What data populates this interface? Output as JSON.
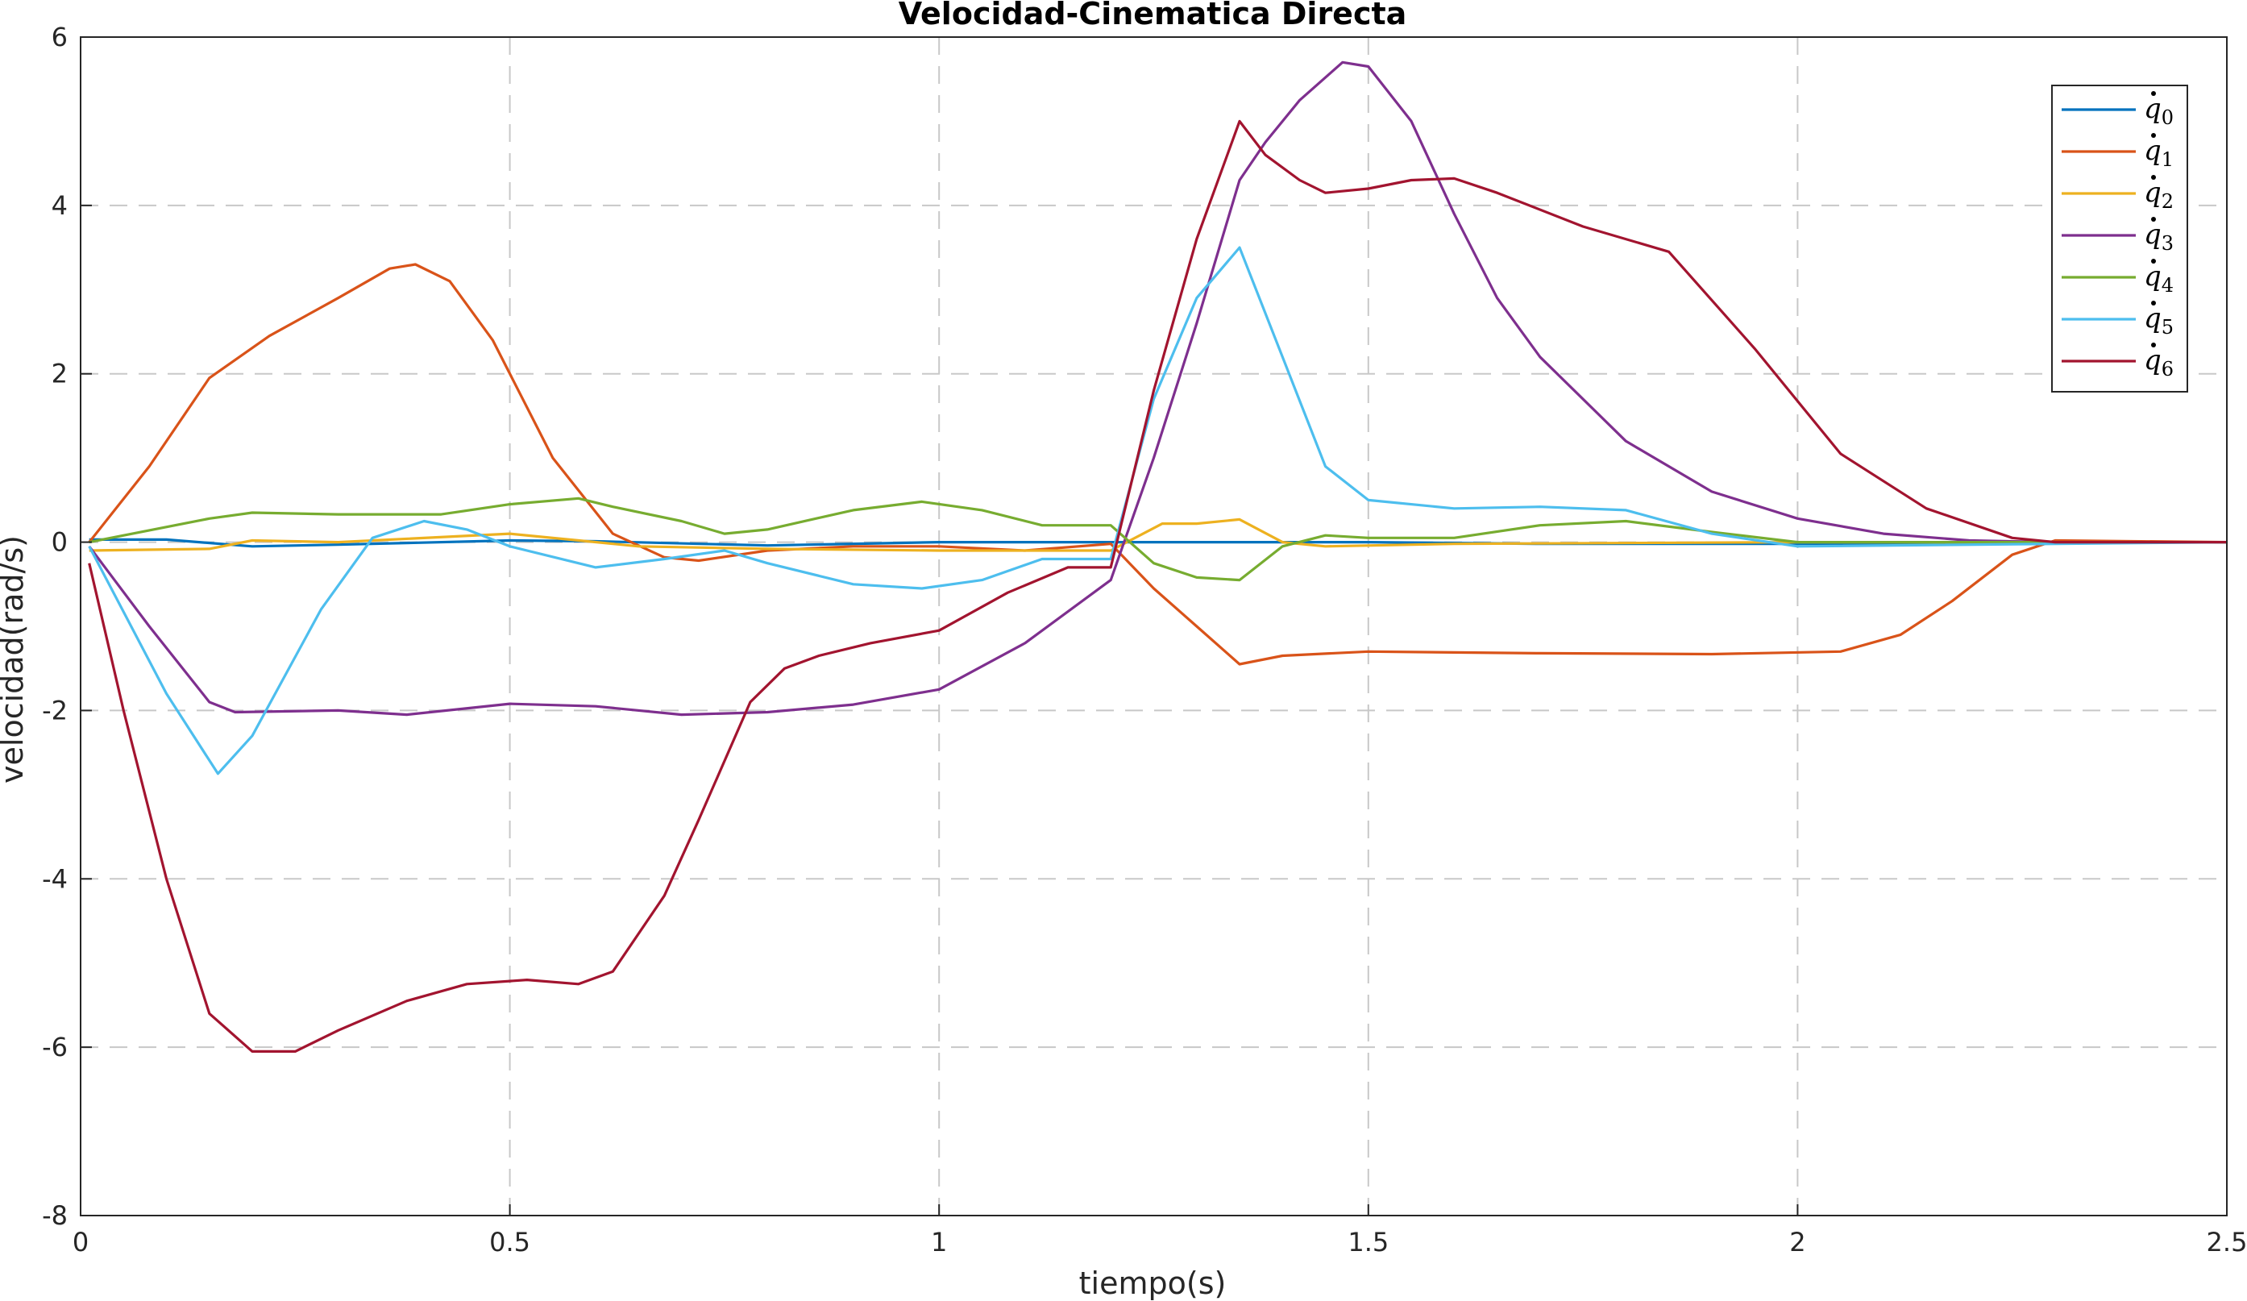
{
  "chart_data": {
    "type": "line",
    "title": "Velocidad-Cinematica Directa",
    "xlabel": "tiempo(s)",
    "ylabel": "velocidad(rad/s)",
    "xlim": [
      0,
      2.5
    ],
    "ylim": [
      -8,
      6
    ],
    "xticks": [
      0,
      0.5,
      1,
      1.5,
      2,
      2.5
    ],
    "xtick_labels": [
      "0",
      "0.5",
      "1",
      "1.5",
      "2",
      "2.5"
    ],
    "yticks": [
      -8,
      -6,
      -4,
      -2,
      0,
      2,
      4,
      6
    ],
    "ytick_labels": [
      "-8",
      "-6",
      "-4",
      "-2",
      "0",
      "2",
      "4",
      "6"
    ],
    "grid": true,
    "legend_position": "top-right",
    "series": [
      {
        "name": "q0",
        "color": "#0072BD",
        "x": [
          0.01,
          0.1,
          0.2,
          0.3,
          0.5,
          0.6,
          0.8,
          1.0,
          1.2,
          1.5,
          1.7,
          2.0,
          2.5
        ],
        "y": [
          0.03,
          0.03,
          -0.05,
          -0.03,
          0.02,
          0.01,
          -0.04,
          0.0,
          0.0,
          0.0,
          -0.02,
          -0.02,
          0.0
        ]
      },
      {
        "name": "q1",
        "color": "#D95319",
        "x": [
          0.01,
          0.08,
          0.15,
          0.22,
          0.3,
          0.36,
          0.39,
          0.43,
          0.48,
          0.55,
          0.62,
          0.68,
          0.72,
          0.8,
          0.9,
          1.0,
          1.1,
          1.2,
          1.25,
          1.3,
          1.35,
          1.4,
          1.5,
          1.7,
          1.9,
          2.05,
          2.12,
          2.18,
          2.25,
          2.3,
          2.5
        ],
        "y": [
          0.0,
          0.9,
          1.95,
          2.45,
          2.9,
          3.25,
          3.3,
          3.1,
          2.4,
          1.0,
          0.1,
          -0.18,
          -0.22,
          -0.1,
          -0.05,
          -0.05,
          -0.1,
          -0.02,
          -0.55,
          -1.0,
          -1.45,
          -1.35,
          -1.3,
          -1.32,
          -1.33,
          -1.3,
          -1.1,
          -0.7,
          -0.15,
          0.02,
          0.0
        ]
      },
      {
        "name": "q2",
        "color": "#EDB120",
        "x": [
          0.01,
          0.15,
          0.2,
          0.3,
          0.5,
          0.65,
          0.8,
          1.0,
          1.2,
          1.26,
          1.3,
          1.35,
          1.4,
          1.45,
          1.6,
          2.0,
          2.5
        ],
        "y": [
          -0.1,
          -0.08,
          0.02,
          0.0,
          0.1,
          -0.05,
          -0.08,
          -0.1,
          -0.1,
          0.22,
          0.22,
          0.27,
          0.0,
          -0.05,
          -0.02,
          0.0,
          0.0
        ]
      },
      {
        "name": "q3",
        "color": "#7E2F8E",
        "x": [
          0.01,
          0.08,
          0.15,
          0.18,
          0.3,
          0.38,
          0.5,
          0.6,
          0.7,
          0.8,
          0.9,
          1.0,
          1.1,
          1.2,
          1.25,
          1.3,
          1.35,
          1.38,
          1.42,
          1.47,
          1.5,
          1.55,
          1.6,
          1.65,
          1.7,
          1.8,
          1.9,
          2.0,
          2.1,
          2.2,
          2.3,
          2.5
        ],
        "y": [
          -0.05,
          -1.0,
          -1.9,
          -2.02,
          -2.0,
          -2.05,
          -1.92,
          -1.95,
          -2.05,
          -2.02,
          -1.93,
          -1.75,
          -1.2,
          -0.45,
          1.0,
          2.6,
          4.3,
          4.75,
          5.25,
          5.7,
          5.65,
          5.0,
          3.9,
          2.9,
          2.2,
          1.2,
          0.6,
          0.28,
          0.1,
          0.02,
          0.0,
          0.0
        ]
      },
      {
        "name": "q4",
        "color": "#77AC30",
        "x": [
          0.01,
          0.15,
          0.2,
          0.3,
          0.42,
          0.5,
          0.58,
          0.62,
          0.7,
          0.75,
          0.8,
          0.9,
          0.98,
          1.05,
          1.12,
          1.2,
          1.25,
          1.3,
          1.35,
          1.4,
          1.45,
          1.5,
          1.6,
          1.7,
          1.8,
          1.9,
          2.0,
          2.5
        ],
        "y": [
          0.0,
          0.28,
          0.35,
          0.33,
          0.33,
          0.45,
          0.52,
          0.42,
          0.25,
          0.1,
          0.15,
          0.38,
          0.48,
          0.38,
          0.2,
          0.2,
          -0.25,
          -0.42,
          -0.45,
          -0.05,
          0.08,
          0.05,
          0.05,
          0.2,
          0.25,
          0.12,
          0.0,
          0.0
        ]
      },
      {
        "name": "q5",
        "color": "#4DBEEE",
        "x": [
          0.01,
          0.1,
          0.16,
          0.2,
          0.28,
          0.34,
          0.4,
          0.45,
          0.5,
          0.6,
          0.68,
          0.75,
          0.8,
          0.9,
          0.98,
          1.05,
          1.12,
          1.2,
          1.25,
          1.3,
          1.35,
          1.4,
          1.45,
          1.5,
          1.6,
          1.7,
          1.8,
          1.9,
          2.0,
          2.5
        ],
        "y": [
          -0.05,
          -1.8,
          -2.75,
          -2.3,
          -0.8,
          0.05,
          0.25,
          0.15,
          -0.05,
          -0.3,
          -0.2,
          -0.1,
          -0.25,
          -0.5,
          -0.55,
          -0.45,
          -0.2,
          -0.2,
          1.7,
          2.9,
          3.5,
          2.2,
          0.9,
          0.5,
          0.4,
          0.42,
          0.38,
          0.1,
          -0.05,
          0.0
        ]
      },
      {
        "name": "q6",
        "color": "#A2142F",
        "x": [
          0.01,
          0.05,
          0.1,
          0.15,
          0.2,
          0.25,
          0.3,
          0.38,
          0.45,
          0.52,
          0.58,
          0.62,
          0.68,
          0.72,
          0.78,
          0.82,
          0.86,
          0.92,
          1.0,
          1.08,
          1.15,
          1.2,
          1.25,
          1.3,
          1.35,
          1.38,
          1.42,
          1.45,
          1.5,
          1.55,
          1.6,
          1.65,
          1.75,
          1.85,
          1.95,
          2.05,
          2.15,
          2.25,
          2.3,
          2.5
        ],
        "y": [
          -0.25,
          -2.0,
          -4.0,
          -5.6,
          -6.05,
          -6.05,
          -5.8,
          -5.45,
          -5.25,
          -5.2,
          -5.25,
          -5.1,
          -4.2,
          -3.3,
          -1.9,
          -1.5,
          -1.35,
          -1.2,
          -1.05,
          -0.6,
          -0.3,
          -0.3,
          1.8,
          3.6,
          5.0,
          4.6,
          4.3,
          4.15,
          4.2,
          4.3,
          4.32,
          4.15,
          3.75,
          3.45,
          2.3,
          1.05,
          0.4,
          0.05,
          0.0,
          0.0
        ]
      }
    ]
  }
}
